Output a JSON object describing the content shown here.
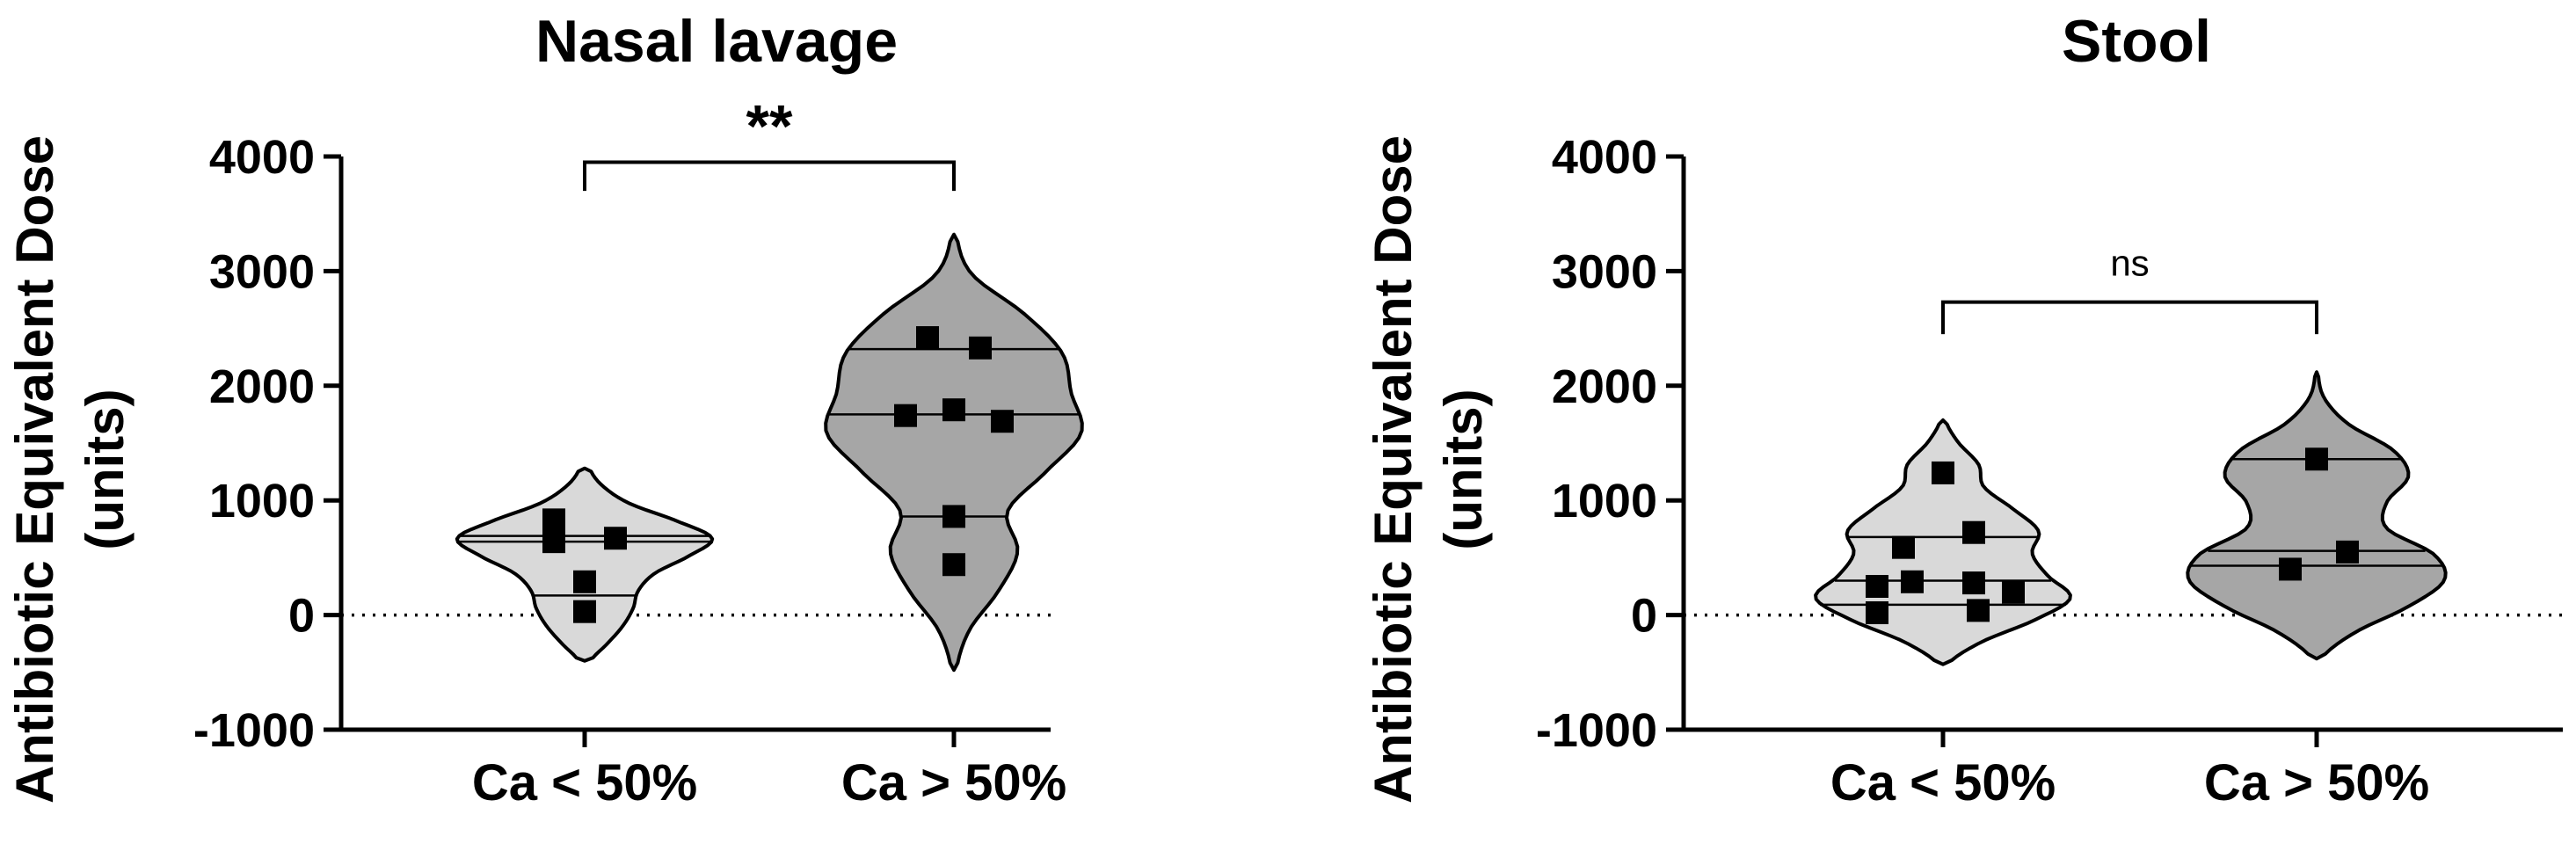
{
  "chart_data": [
    {
      "type": "violin",
      "title": "Nasal lavage",
      "ylabel": [
        "Antibiotic Equivalent Dose",
        "(units)"
      ],
      "ylim": [
        -1000,
        4000
      ],
      "yticks": [
        "-1000",
        "0",
        "1000",
        "2000",
        "3000",
        "4000"
      ],
      "reference_line": 0,
      "categories": [
        "Ca < 50%",
        "Ca > 50%"
      ],
      "series": [
        {
          "category": "Ca < 50%",
          "fill": "#d9d9d9",
          "points": [
            {
              "offset": -0.35,
              "y": 830
            },
            {
              "offset": -0.35,
              "y": 640
            },
            {
              "offset": 0.35,
              "y": 670
            },
            {
              "offset": 0.0,
              "y": 290
            },
            {
              "offset": 0.0,
              "y": 30
            }
          ],
          "violin_min": -400,
          "violin_max": 1280,
          "violin_profile": [
            0.05,
            0.18,
            0.3,
            0.38,
            0.42,
            0.55,
            0.82,
            1.0,
            0.72,
            0.35,
            0.14,
            0.04
          ],
          "quartiles": [
            170,
            640,
            690
          ]
        },
        {
          "category": "Ca > 50%",
          "fill": "#a6a6a6",
          "points": [
            {
              "offset": -0.3,
              "y": 2420
            },
            {
              "offset": 0.3,
              "y": 2330
            },
            {
              "offset": -0.55,
              "y": 1740
            },
            {
              "offset": 0.0,
              "y": 1790
            },
            {
              "offset": 0.55,
              "y": 1690
            },
            {
              "offset": 0.0,
              "y": 860
            },
            {
              "offset": 0.0,
              "y": 440
            }
          ],
          "violin_min": -480,
          "violin_max": 3320,
          "violin_profile": [
            0.02,
            0.12,
            0.35,
            0.5,
            0.42,
            0.72,
            1.0,
            0.92,
            0.85,
            0.55,
            0.14,
            0.02
          ],
          "quartiles": [
            860,
            1750,
            2320
          ]
        }
      ],
      "comparison": {
        "label": "**",
        "bracket_y": 3950,
        "drop_to": 3700
      }
    },
    {
      "type": "violin",
      "title": "Stool",
      "ylabel": [
        "Antibiotic Equivalent Dose",
        "(units)"
      ],
      "ylim": [
        -1000,
        4000
      ],
      "yticks": [
        "-1000",
        "0",
        "1000",
        "2000",
        "3000",
        "4000"
      ],
      "reference_line": 0,
      "categories": [
        "Ca < 50%",
        "Ca > 50%"
      ],
      "series": [
        {
          "category": "Ca < 50%",
          "fill": "#d9d9d9",
          "points": [
            {
              "offset": 0.0,
              "y": 1240
            },
            {
              "offset": -0.45,
              "y": 590
            },
            {
              "offset": 0.35,
              "y": 720
            },
            {
              "offset": -0.75,
              "y": 250
            },
            {
              "offset": -0.35,
              "y": 290
            },
            {
              "offset": 0.35,
              "y": 280
            },
            {
              "offset": 0.8,
              "y": 200
            },
            {
              "offset": -0.75,
              "y": 20
            },
            {
              "offset": 0.4,
              "y": 40
            }
          ],
          "violin_min": -430,
          "violin_max": 1700,
          "violin_profile": [
            0.04,
            0.3,
            0.72,
            1.0,
            0.82,
            0.7,
            0.75,
            0.55,
            0.32,
            0.28,
            0.12,
            0.02
          ],
          "quartiles": [
            90,
            300,
            680
          ]
        },
        {
          "category": "Ca > 50%",
          "fill": "#a6a6a6",
          "points": [
            {
              "offset": 0.0,
              "y": 1360
            },
            {
              "offset": -0.3,
              "y": 400
            },
            {
              "offset": 0.35,
              "y": 550
            }
          ],
          "violin_min": -380,
          "violin_max": 2120,
          "violin_profile": [
            0.04,
            0.3,
            0.72,
            1.0,
            0.92,
            0.55,
            0.55,
            0.72,
            0.6,
            0.25,
            0.06,
            0.01
          ],
          "quartiles": [
            430,
            560,
            1360
          ]
        }
      ],
      "comparison": {
        "label": "ns",
        "bracket_y": 2730,
        "drop_to": 2450
      }
    }
  ]
}
